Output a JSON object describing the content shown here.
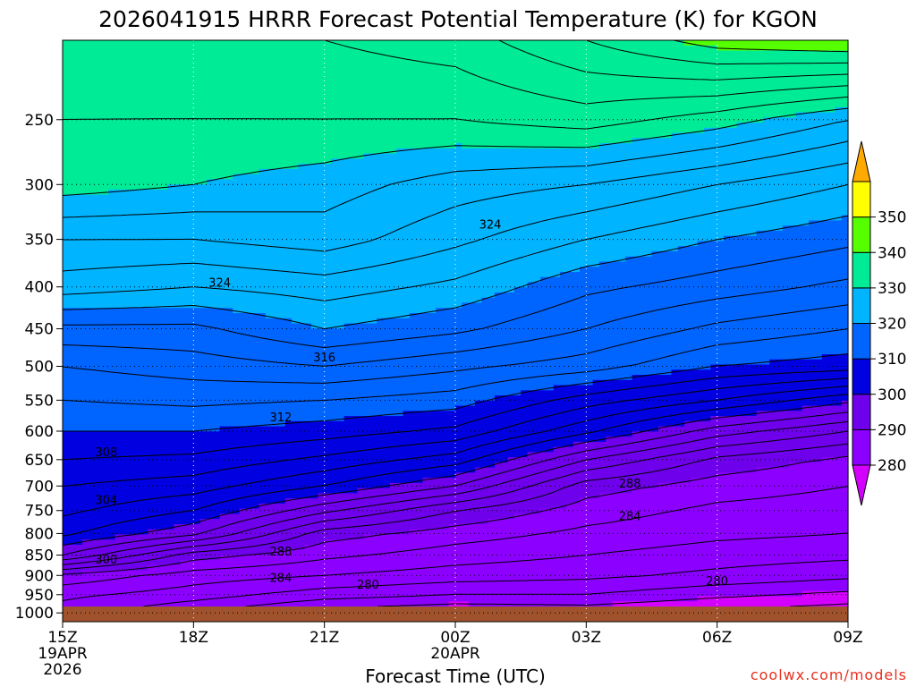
{
  "chart_data": {
    "type": "heatmap",
    "title": "2026041915 HRRR Forecast Potential Temperature (K) for KGON",
    "xlabel": "Forecast Time (UTC)",
    "x_ticks": [
      {
        "hour": 0,
        "label": "15Z",
        "sub": [
          "19APR",
          "2026"
        ]
      },
      {
        "hour": 3,
        "label": "18Z",
        "sub": []
      },
      {
        "hour": 6,
        "label": "21Z",
        "sub": []
      },
      {
        "hour": 9,
        "label": "00Z",
        "sub": [
          "20APR"
        ]
      },
      {
        "hour": 12,
        "label": "03Z",
        "sub": []
      },
      {
        "hour": 15,
        "label": "06Z",
        "sub": []
      },
      {
        "hour": 18,
        "label": "09Z",
        "sub": []
      }
    ],
    "xlim": [
      0,
      18
    ],
    "y_ticks": [
      250,
      300,
      350,
      400,
      450,
      500,
      550,
      600,
      650,
      700,
      750,
      800,
      850,
      900,
      950,
      1000
    ],
    "ylim": [
      1025,
      200
    ],
    "y_scale": "log",
    "grid": true,
    "colorbar": {
      "labels": [
        280,
        290,
        300,
        310,
        320,
        330,
        340,
        350
      ],
      "levels": [
        270,
        280,
        290,
        300,
        310,
        320,
        330,
        340,
        350,
        360
      ],
      "colors": [
        "#d400ff",
        "#8c00ff",
        "#6f00ec",
        "#0000e0",
        "#0064ff",
        "#00b4ff",
        "#00eb96",
        "#55ff00",
        "#ffff00",
        "#ffaa00"
      ]
    },
    "contour_interval": 2,
    "contour_labels": [
      {
        "hour": 3.6,
        "p": 396,
        "text": "324"
      },
      {
        "hour": 9.8,
        "p": 336,
        "text": "324"
      },
      {
        "hour": 6.0,
        "p": 488,
        "text": "316"
      },
      {
        "hour": 5.0,
        "p": 578,
        "text": "312"
      },
      {
        "hour": 1.0,
        "p": 637,
        "text": "308"
      },
      {
        "hour": 1.0,
        "p": 729,
        "text": "304"
      },
      {
        "hour": 1.0,
        "p": 862,
        "text": "300"
      },
      {
        "hour": 5.0,
        "p": 843,
        "text": "288"
      },
      {
        "hour": 5.0,
        "p": 907,
        "text": "284"
      },
      {
        "hour": 7.0,
        "p": 925,
        "text": "280"
      },
      {
        "hour": 13.0,
        "p": 696,
        "text": "288"
      },
      {
        "hour": 13.0,
        "p": 763,
        "text": "284"
      },
      {
        "hour": 15.0,
        "p": 915,
        "text": "280"
      }
    ],
    "profile_hours": [
      0,
      3,
      6,
      9,
      12,
      15,
      18
    ],
    "profile_levels": [
      1000,
      950,
      900,
      850,
      800,
      750,
      700,
      650,
      600,
      550,
      500,
      450,
      400,
      350,
      300,
      250,
      200
    ],
    "theta_profiles": [
      [
        285.0,
        286.5,
        289.5,
        298.0,
        302.5,
        304.5,
        306.0,
        308.0,
        310.0,
        312.0,
        314.0,
        317.5,
        323.0,
        326.0,
        331.0,
        332.0,
        333.0
      ],
      [
        282.0,
        285.0,
        287.0,
        291.0,
        298.5,
        302.0,
        305.0,
        307.5,
        310.0,
        312.5,
        315.0,
        317.5,
        322.0,
        326.0,
        330.0,
        332.0,
        333.0
      ],
      [
        279.0,
        283.0,
        286.0,
        288.5,
        291.0,
        296.5,
        302.0,
        305.5,
        309.0,
        312.0,
        316.0,
        320.0,
        323.0,
        327.0,
        329.0,
        332.0,
        334.0
      ],
      [
        278.0,
        282.0,
        285.0,
        287.0,
        289.0,
        292.0,
        298.0,
        303.0,
        307.5,
        311.0,
        314.5,
        318.5,
        321.5,
        324.5,
        327.0,
        332.0,
        335.0
      ],
      [
        278.5,
        282.0,
        284.5,
        286.0,
        287.5,
        289.0,
        291.0,
        296.0,
        302.5,
        307.0,
        313.0,
        316.0,
        318.5,
        322.0,
        326.0,
        333.0,
        338.0
      ],
      [
        277.5,
        280.5,
        283.5,
        285.0,
        286.5,
        287.5,
        289.0,
        291.5,
        297.0,
        304.0,
        310.0,
        313.5,
        317.0,
        320.0,
        324.0,
        331.0,
        341.0
      ],
      [
        276.5,
        279.5,
        282.5,
        284.5,
        286.0,
        287.0,
        288.0,
        289.5,
        294.0,
        300.5,
        309.0,
        312.0,
        315.5,
        318.5,
        322.0,
        328.0,
        342.0
      ]
    ]
  },
  "credit": "coolwx.com/models"
}
